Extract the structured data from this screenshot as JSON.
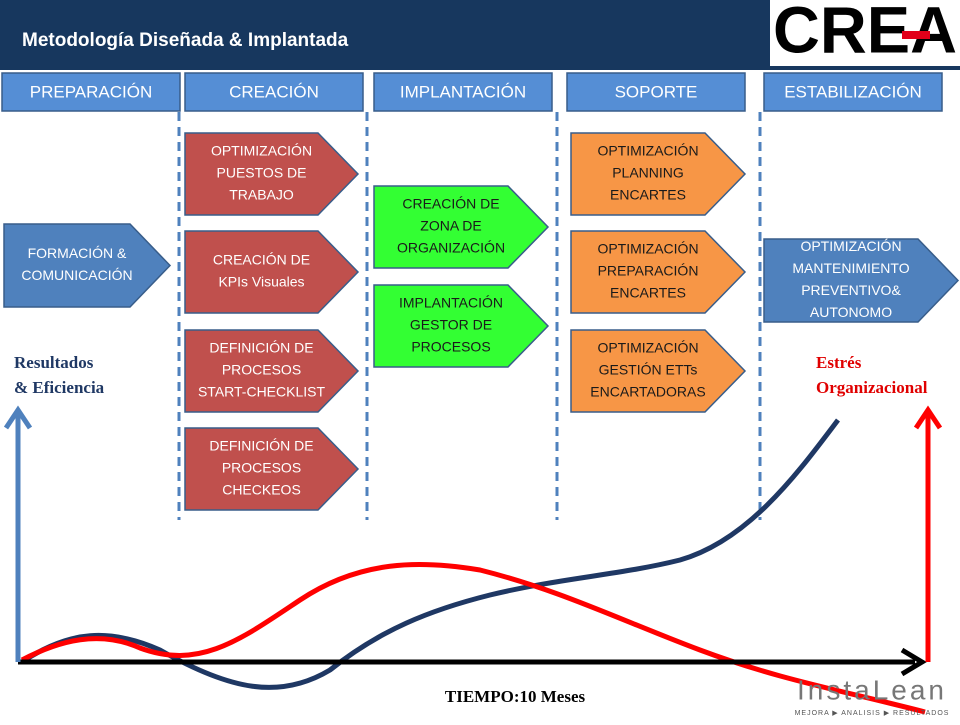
{
  "header": {
    "title": "Metodología Diseñada & Implantada",
    "logo": "CREA"
  },
  "phases": [
    "PREPARACIÓN",
    "CREACIÓN",
    "IMPLANTACIÓN",
    "SOPORTE",
    "ESTABILIZACIÓN"
  ],
  "boxes": [
    {
      "lines": [
        "FORMACIÓN &",
        "COMUNICACIÓN"
      ]
    },
    {
      "lines": [
        "OPTIMIZACIÓN",
        "PUESTOS DE",
        "TRABAJO"
      ]
    },
    {
      "lines": [
        "CREACIÓN DE",
        "KPIs Visuales"
      ]
    },
    {
      "lines": [
        "DEFINICIÓN DE",
        "PROCESOS",
        "START-CHECKLIST"
      ]
    },
    {
      "lines": [
        "DEFINICIÓN DE",
        "PROCESOS",
        "CHECKEOS"
      ]
    },
    {
      "lines": [
        "CREACIÓN DE",
        "ZONA DE",
        "ORGANIZACIÓN"
      ]
    },
    {
      "lines": [
        "IMPLANTACIÓN",
        "GESTOR DE",
        "PROCESOS"
      ]
    },
    {
      "lines": [
        "OPTIMIZACIÓN",
        "PLANNING",
        "ENCARTES"
      ]
    },
    {
      "lines": [
        "OPTIMIZACIÓN",
        "PREPARACIÓN",
        "ENCARTES"
      ]
    },
    {
      "lines": [
        "OPTIMIZACIÓN",
        "GESTIÓN ETTs",
        "ENCARTADORAS"
      ]
    },
    {
      "lines": [
        "OPTIMIZACIÓN",
        "MANTENIMIENTO",
        "PREVENTIVO&",
        "AUTONOMO"
      ]
    }
  ],
  "axes": {
    "left_label": [
      "Resultados",
      "& Eficiencia"
    ],
    "right_label": [
      "Estrés",
      "Organizacional"
    ],
    "x_label": "TIEMPO:10 Meses"
  },
  "footer": {
    "brand": "InstaLean",
    "tagline": "MEJORA ▶ ANALISIS ▶ RESULTADOS"
  }
}
